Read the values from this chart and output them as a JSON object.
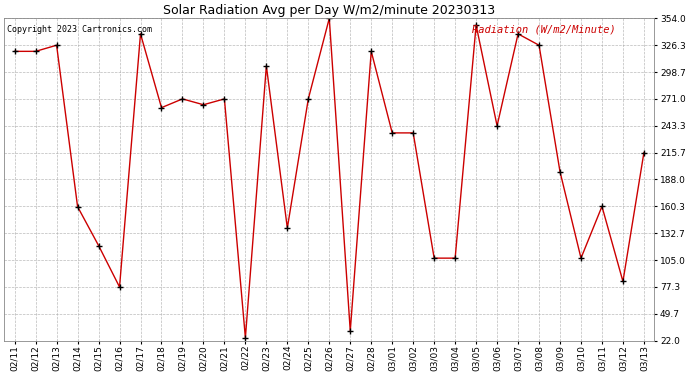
{
  "title": "Solar Radiation Avg per Day W/m2/minute 20230313",
  "copyright": "Copyright 2023 Cartronics.com",
  "ylabel": "Radiation (W/m2/Minute)",
  "dates": [
    "02/11",
    "02/12",
    "02/13",
    "02/14",
    "02/15",
    "02/16",
    "02/17",
    "02/18",
    "02/19",
    "02/20",
    "02/21",
    "02/22",
    "02/23",
    "02/24",
    "02/25",
    "02/26",
    "02/27",
    "02/28",
    "03/01",
    "03/02",
    "03/03",
    "03/04",
    "03/05",
    "03/06",
    "03/07",
    "03/08",
    "03/09",
    "03/10",
    "03/11",
    "03/12",
    "03/13"
  ],
  "values": [
    320.0,
    320.0,
    326.3,
    160.0,
    120.0,
    77.3,
    338.0,
    262.0,
    271.0,
    265.0,
    271.0,
    25.0,
    305.0,
    138.0,
    271.0,
    354.0,
    32.0,
    320.0,
    236.0,
    236.0,
    107.0,
    107.0,
    347.0,
    243.3,
    338.0,
    326.3,
    196.0,
    107.0,
    160.3,
    83.0,
    215.7
  ],
  "line_color": "#cc0000",
  "marker_color": "#000000",
  "bg_color": "#ffffff",
  "title_color": "#000000",
  "copyright_color": "#000000",
  "ylabel_color": "#cc0000",
  "grid_color": "#aaaaaa",
  "ylim": [
    22.0,
    354.0
  ],
  "yticks": [
    22.0,
    49.7,
    77.3,
    105.0,
    132.7,
    160.3,
    188.0,
    215.7,
    243.3,
    271.0,
    298.7,
    326.3,
    354.0
  ],
  "title_fontsize": 9,
  "copyright_fontsize": 6,
  "ylabel_fontsize": 7.5,
  "tick_fontsize": 6.5,
  "figwidth": 6.9,
  "figheight": 3.75,
  "dpi": 100
}
